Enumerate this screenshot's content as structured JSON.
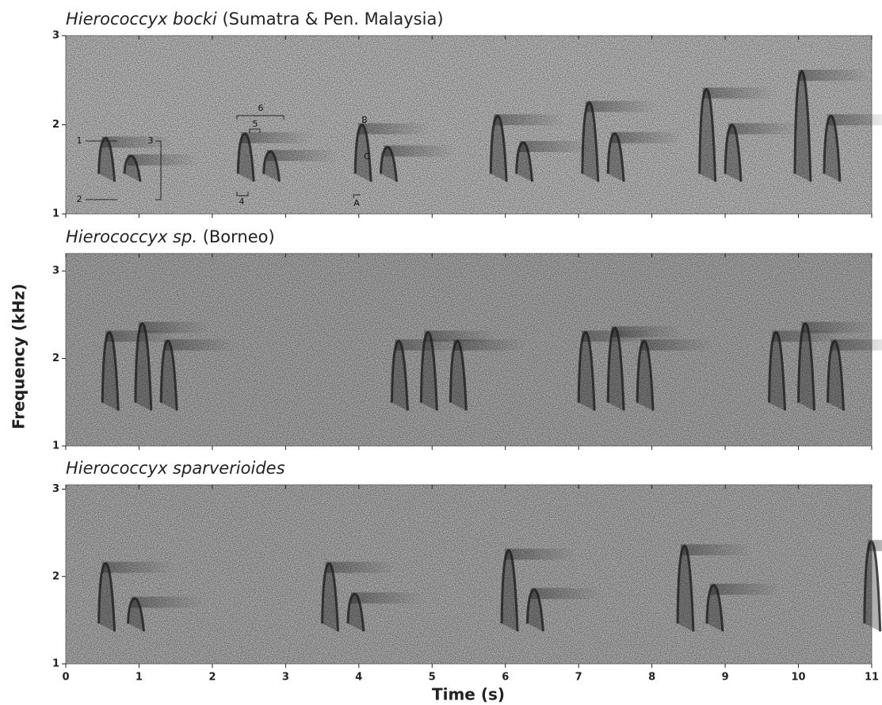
{
  "chart_data": [
    {
      "type": "spectrogram",
      "title": "Hierococcyx bocki",
      "subtitle": "(Sumatra & Pen. Malaysia)",
      "x": [
        0.45,
        0.8,
        2.35,
        2.7,
        3.95,
        4.3,
        5.8,
        6.15,
        7.05,
        7.4,
        8.65,
        9.0,
        9.95,
        10.35
      ],
      "values": [
        1.85,
        1.65,
        1.9,
        1.7,
        2.0,
        1.75,
        2.1,
        1.8,
        2.25,
        1.9,
        2.4,
        2.0,
        2.6,
        2.1
      ],
      "color": "#1e1e1e",
      "xlim": [
        0,
        11
      ],
      "ylim": [
        1,
        3
      ],
      "yticks": [
        1,
        2,
        3
      ],
      "annotations": [
        "1",
        "2",
        "3",
        "4",
        "5",
        "6",
        "A",
        "B",
        "C"
      ]
    },
    {
      "type": "spectrogram",
      "title": "Hierococcyx sp.",
      "subtitle": "(Borneo)",
      "x": [
        0.5,
        0.95,
        1.3,
        4.45,
        4.85,
        5.25,
        7.0,
        7.4,
        7.8,
        9.6,
        10.0,
        10.4
      ],
      "values": [
        2.3,
        2.4,
        2.2,
        2.2,
        2.3,
        2.2,
        2.3,
        2.35,
        2.2,
        2.3,
        2.4,
        2.2
      ],
      "color": "#1e1e1e",
      "xlim": [
        0,
        11
      ],
      "ylim": [
        1,
        3.2
      ],
      "yticks": [
        1,
        2,
        3
      ],
      "ylabel": "Frequency (kHz)"
    },
    {
      "type": "spectrogram",
      "title": "Hierococcyx sparverioides",
      "x": [
        0.45,
        0.85,
        3.5,
        3.85,
        5.95,
        6.3,
        8.35,
        8.75,
        10.9
      ],
      "values": [
        2.15,
        1.75,
        2.15,
        1.8,
        2.3,
        1.85,
        2.35,
        1.9,
        2.4
      ],
      "color": "#1e1e1e",
      "xlim": [
        0,
        11
      ],
      "ylim": [
        1,
        3.05
      ],
      "yticks": [
        1,
        2,
        3
      ],
      "xticks": [
        0,
        1,
        2,
        3,
        4,
        5,
        6,
        7,
        8,
        9,
        10,
        11
      ],
      "xlabel": "Time (s)"
    }
  ]
}
